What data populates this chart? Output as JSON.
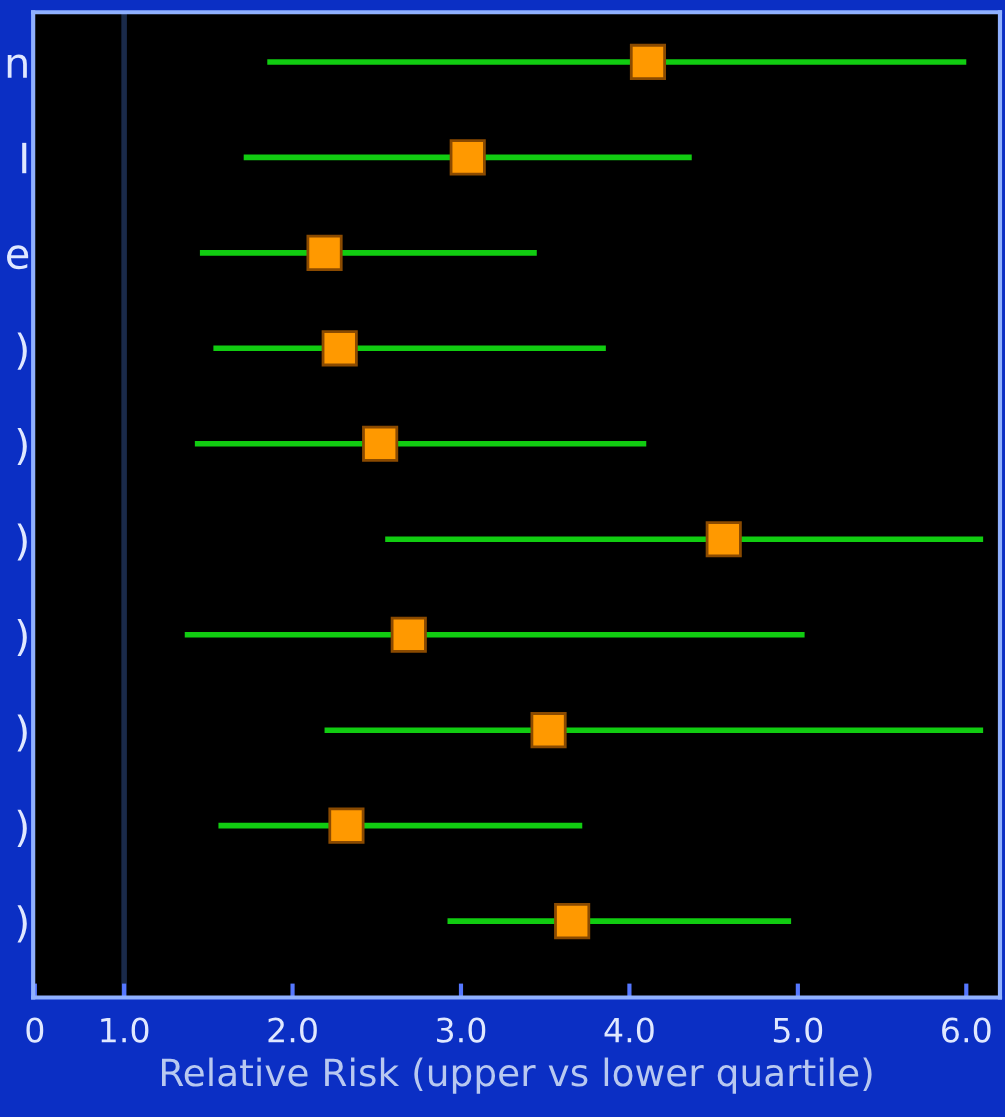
{
  "chart_data": {
    "type": "scatter",
    "orientation": "horizontal",
    "xlabel": "Relative Risk (upper vs lower quartile)",
    "categories": [
      "n",
      "I",
      "e",
      ")",
      ")",
      ")",
      ")",
      ")",
      ")",
      ")"
    ],
    "values": [
      4.11,
      3.04,
      2.19,
      2.28,
      2.52,
      4.56,
      2.69,
      3.52,
      2.32,
      3.66
    ],
    "errors": [
      [
        1.85,
        6.0
      ],
      [
        1.71,
        4.37
      ],
      [
        1.45,
        3.45
      ],
      [
        1.53,
        3.86
      ],
      [
        1.42,
        4.1
      ],
      [
        2.55,
        6.1
      ],
      [
        1.36,
        5.04
      ],
      [
        2.19,
        6.1
      ],
      [
        1.56,
        3.72
      ],
      [
        2.92,
        4.96
      ]
    ],
    "color": "#ff9900",
    "marker": "square",
    "xlim": [
      0.46,
      6.2
    ],
    "xticks": [
      {
        "value": 0.47,
        "label": "0"
      },
      "1.0",
      {
        "value": 2,
        "label": "2.0"
      },
      {
        "value": 3,
        "label": "3.0"
      },
      {
        "value": 4,
        "label": "4.0"
      },
      {
        "value": 5,
        "label": "5.0"
      },
      {
        "value": 6,
        "label": "6.0"
      }
    ],
    "ref_lines": [
      {
        "axis": "x",
        "value": 1.0,
        "label": null,
        "color": "#1a2a4a"
      }
    ],
    "grid": false,
    "legend": false
  }
}
